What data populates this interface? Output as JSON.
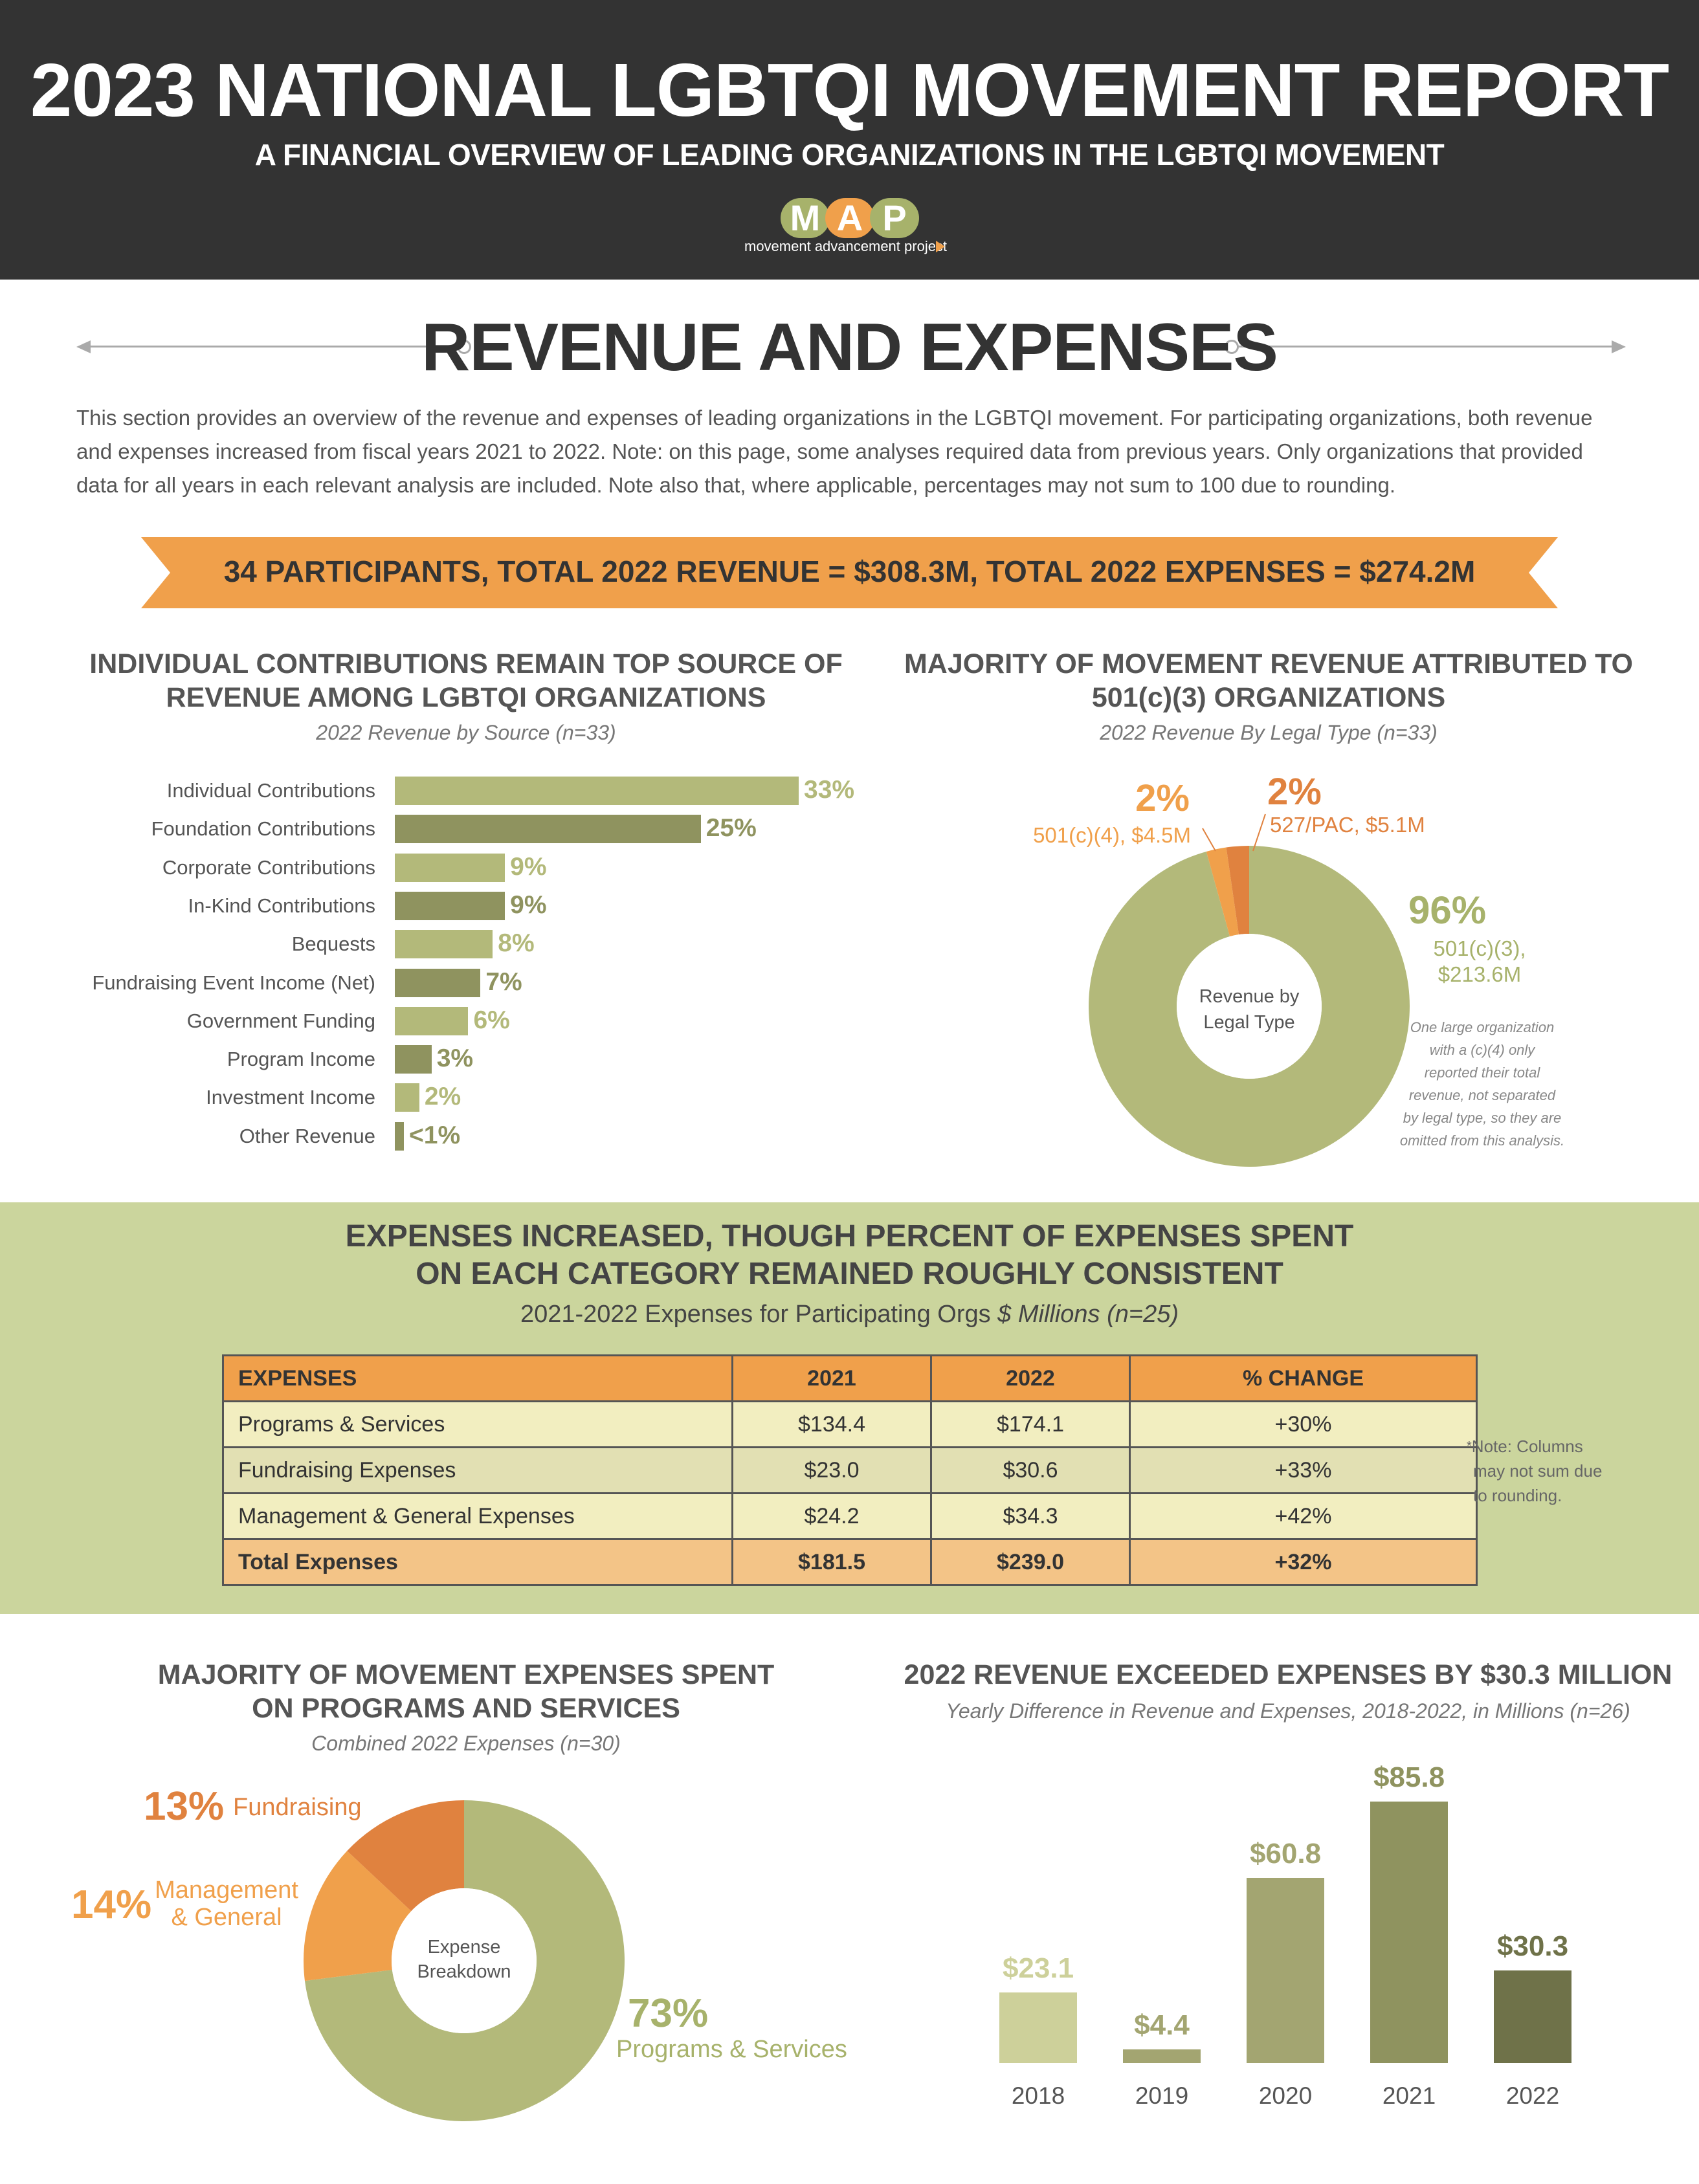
{
  "header": {
    "title": "2023 NATIONAL LGBTQI MOVEMENT REPORT",
    "subtitle": "A FINANCIAL OVERVIEW OF LEADING ORGANIZATIONS IN THE LGBTQI MOVEMENT",
    "logo_letters": [
      "M",
      "A",
      "P"
    ],
    "logo_tagline": "movement advancement project",
    "colors": {
      "logo_m": "#a7b26b",
      "logo_a": "#f0a04b",
      "logo_p": "#a7b26b",
      "background": "#333333"
    }
  },
  "section": {
    "title": "REVENUE AND EXPENSES",
    "intro": "This section provides an overview of the revenue and expenses of leading organizations in the LGBTQI movement. For participating organizations, both revenue and expenses increased from fiscal years 2021 to 2022. Note: on this page, some analyses required data from previous years. Only organizations that provided data for all years in each relevant analysis are included. Note also that, where applicable, percentages may not sum to 100 due to rounding."
  },
  "banner": {
    "text": "34 PARTICIPANTS, TOTAL 2022 REVENUE = $308.3M, TOTAL 2022 EXPENSES = $274.2M",
    "color": "#f0a04b"
  },
  "revenue_source": {
    "title_line1": "INDIVIDUAL CONTRIBUTIONS REMAIN TOP SOURCE OF",
    "title_line2": "REVENUE AMONG LGBTQI ORGANIZATIONS",
    "subtitle": "2022 Revenue by Source (n=33)"
  },
  "legal_type": {
    "title_line1": "MAJORITY OF MOVEMENT REVENUE ATTRIBUTED TO",
    "title_line2": "501(c)(3) ORGANIZATIONS",
    "subtitle": "2022 Revenue By Legal Type (n=33)",
    "center_line1": "Revenue by",
    "center_line2": "Legal Type",
    "label_c4_pct": "2%",
    "label_c4": "501(c)(4), $4.5M",
    "label_pac_pct": "2%",
    "label_pac": "527/PAC, $5.1M",
    "label_c3_pct": "96%",
    "label_c3_line1": "501(c)(3),",
    "label_c3_line2": "$213.6M",
    "footnote": [
      "One large organization",
      "with a (c)(4) only",
      "reported their total",
      "revenue, not separated",
      "by legal type, so they are",
      "omitted from this analysis."
    ]
  },
  "expenses": {
    "title_line1": "EXPENSES INCREASED, THOUGH PERCENT OF EXPENSES SPENT",
    "title_line2": "ON EACH CATEGORY REMAINED ROUGHLY CONSISTENT",
    "subtitle_plain": "2021-2022 Expenses for Participating Orgs",
    "subtitle_italic": "$ Millions (n=25)",
    "note_star": "*",
    "note_lines": [
      "Note: Columns",
      "may not sum due",
      "to rounding."
    ]
  },
  "expense_breakdown": {
    "title_line1": "MAJORITY OF MOVEMENT EXPENSES SPENT",
    "title_line2": "ON PROGRAMS AND SERVICES",
    "subtitle": "Combined 2022 Expenses (n=30)",
    "center_line1": "Expense",
    "center_line2": "Breakdown",
    "fund_pct": "13%",
    "fund_label": "Fundraising",
    "mgmt_pct": "14%",
    "mgmt_label_1": "Management",
    "mgmt_label_2": "& General",
    "prog_pct": "73%",
    "prog_label": "Programs & Services"
  },
  "yearly": {
    "title": "2022 REVENUE EXCEEDED EXPENSES BY $30.3 MILLION",
    "subtitle": "Yearly Difference in Revenue and Expenses, 2018-2022, in Millions (n=26)"
  },
  "chart_data": [
    {
      "type": "bar",
      "orientation": "horizontal",
      "title": "INDIVIDUAL CONTRIBUTIONS REMAIN TOP SOURCE OF REVENUE AMONG LGBTQI ORGANIZATIONS",
      "subtitle": "2022 Revenue by Source (n=33)",
      "categories": [
        "Individual Contributions",
        "Foundation Contributions",
        "Corporate Contributions",
        "In-Kind Contributions",
        "Bequests",
        "Fundraising Event Income (Net)",
        "Government Funding",
        "Program Income",
        "Investment Income",
        "Other Revenue"
      ],
      "values": [
        33,
        25,
        9,
        9,
        8,
        7,
        6,
        3,
        2,
        0.5
      ],
      "value_labels": [
        "33%",
        "25%",
        "9%",
        "9%",
        "8%",
        "7%",
        "6%",
        "3%",
        "2%",
        "<1%"
      ],
      "colors": [
        "#b3b97a",
        "#8f935f"
      ]
    },
    {
      "type": "pie",
      "title": "MAJORITY OF MOVEMENT REVENUE ATTRIBUTED TO 501(c)(3) ORGANIZATIONS",
      "subtitle": "2022 Revenue By Legal Type (n=33)",
      "categories": [
        "501(c)(3)",
        "501(c)(4)",
        "527/PAC"
      ],
      "values": [
        213.6,
        4.5,
        5.1
      ],
      "percent_labels": [
        "96%",
        "2%",
        "2%"
      ],
      "colors": [
        "#b3b97a",
        "#f0a04b",
        "#e0823f"
      ]
    },
    {
      "type": "table",
      "title": "EXPENSES INCREASED, THOUGH PERCENT OF EXPENSES SPENT ON EACH CATEGORY REMAINED ROUGHLY CONSISTENT",
      "subtitle": "2021-2022 Expenses for Participating Orgs $ Millions (n=25)",
      "columns": [
        "EXPENSES",
        "2021",
        "2022",
        "% CHANGE"
      ],
      "rows": [
        [
          "Programs & Services",
          "$134.4",
          "$174.1",
          "+30%"
        ],
        [
          "Fundraising Expenses",
          "$23.0",
          "$30.6",
          "+33%"
        ],
        [
          "Management & General Expenses",
          "$24.2",
          "$34.3",
          "+42%"
        ],
        [
          "Total Expenses",
          "$181.5",
          "$239.0",
          "+32%"
        ]
      ]
    },
    {
      "type": "pie",
      "title": "MAJORITY OF MOVEMENT EXPENSES SPENT ON PROGRAMS AND SERVICES",
      "subtitle": "Combined 2022 Expenses (n=30)",
      "categories": [
        "Programs & Services",
        "Management & General",
        "Fundraising"
      ],
      "values": [
        73,
        14,
        13
      ],
      "colors": [
        "#b3b97a",
        "#f0a04b",
        "#e0823f"
      ]
    },
    {
      "type": "bar",
      "title": "2022 REVENUE EXCEEDED EXPENSES BY $30.3 MILLION",
      "subtitle": "Yearly Difference in Revenue and Expenses, 2018-2022, in Millions (n=26)",
      "categories": [
        "2018",
        "2019",
        "2020",
        "2021",
        "2022"
      ],
      "values": [
        23.1,
        4.4,
        60.8,
        85.8,
        30.3
      ],
      "value_labels": [
        "$23.1",
        "$4.4",
        "$60.8",
        "$85.8",
        "$30.3"
      ],
      "colors": [
        "#cdd09a",
        "#a3a571",
        "#a3a571",
        "#8f935f",
        "#6f7249"
      ]
    }
  ]
}
